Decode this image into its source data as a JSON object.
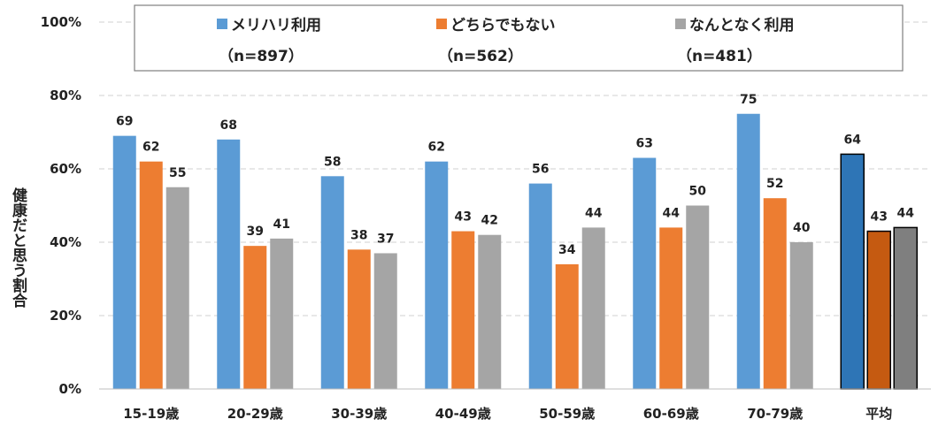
{
  "chart_data": {
    "type": "bar",
    "ylabel": "健康だと思う割合",
    "ylim": [
      0,
      100
    ],
    "yticks": [
      "0%",
      "20%",
      "40%",
      "60%",
      "80%",
      "100%"
    ],
    "ytick_values": [
      0,
      20,
      40,
      60,
      80,
      100
    ],
    "grid": true,
    "legend_position": "top",
    "categories": [
      "15-19歳",
      "20-29歳",
      "30-39歳",
      "40-49歳",
      "50-59歳",
      "60-69歳",
      "70-79歳",
      "平均"
    ],
    "series": [
      {
        "name": "メリハリ利用",
        "n": "（n=897）",
        "color": "#5b9bd5",
        "highlight_color": "#2e75b6",
        "values": [
          69,
          68,
          58,
          62,
          56,
          63,
          75,
          64
        ]
      },
      {
        "name": "どちらでもない",
        "n": "（n=562）",
        "color": "#ed7d31",
        "highlight_color": "#c55a11",
        "values": [
          62,
          39,
          38,
          43,
          34,
          44,
          52,
          43
        ]
      },
      {
        "name": "なんとなく利用",
        "n": "（n=481）",
        "color": "#a5a5a5",
        "highlight_color": "#7f7f7f",
        "values": [
          55,
          41,
          37,
          42,
          44,
          50,
          40,
          44
        ]
      }
    ]
  }
}
